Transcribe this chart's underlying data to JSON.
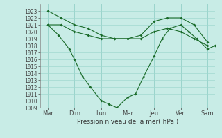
{
  "background_color": "#c8ece6",
  "grid_color": "#a0d8d0",
  "line_color": "#1a6b2a",
  "xlabel": "Pression niveau de la mer( hPa )",
  "ylim": [
    1009,
    1024
  ],
  "yticks": [
    1009,
    1010,
    1011,
    1012,
    1013,
    1014,
    1015,
    1016,
    1017,
    1018,
    1019,
    1020,
    1021,
    1022,
    1023
  ],
  "xtick_labels": [
    "Mar",
    "Dim",
    "Lun",
    "Mer",
    "Jeu",
    "Ven",
    "Sam"
  ],
  "xlim": [
    -0.3,
    6.3
  ],
  "line1_x": [
    0,
    0.5,
    1.0,
    1.5,
    2.0,
    2.5,
    3.0,
    3.5,
    4.0,
    4.5,
    5.0,
    5.5,
    6.0
  ],
  "line1_y": [
    1023.0,
    1022.0,
    1021.0,
    1020.5,
    1019.5,
    1019.0,
    1019.0,
    1019.5,
    1021.5,
    1022.0,
    1022.0,
    1021.0,
    1018.5
  ],
  "line2_x": [
    0,
    0.5,
    1.0,
    1.5,
    2.0,
    2.5,
    3.0,
    3.5,
    4.0,
    4.5,
    5.0,
    5.5,
    6.0
  ],
  "line2_y": [
    1021.0,
    1021.0,
    1020.0,
    1019.5,
    1019.0,
    1019.0,
    1019.0,
    1019.0,
    1020.0,
    1020.5,
    1020.0,
    1019.0,
    1018.0
  ],
  "line3_x": [
    0,
    0.4,
    0.8,
    1.0,
    1.3,
    1.6,
    2.0,
    2.3,
    2.6,
    3.0,
    3.3,
    3.6,
    4.0,
    4.3,
    4.6,
    5.0,
    5.3,
    5.6,
    6.0,
    6.3
  ],
  "line3_y": [
    1021.0,
    1019.5,
    1017.5,
    1016.0,
    1013.5,
    1012.0,
    1010.0,
    1009.5,
    1009.0,
    1010.5,
    1011.0,
    1013.5,
    1016.5,
    1019.0,
    1020.5,
    1021.0,
    1020.0,
    1019.0,
    1017.5,
    1018.0
  ]
}
